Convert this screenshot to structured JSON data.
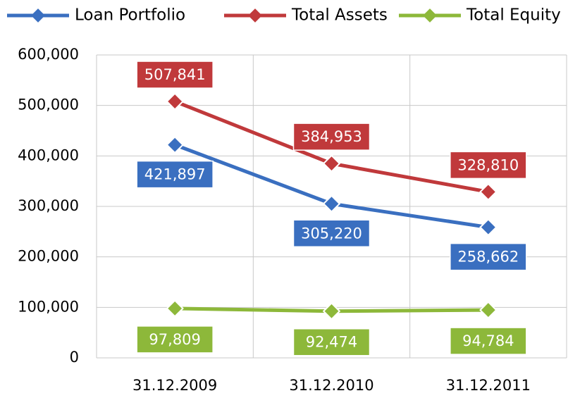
{
  "chart_data": {
    "type": "line",
    "categories": [
      "31.12.2009",
      "31.12.2010",
      "31.12.2011"
    ],
    "series": [
      {
        "name": "Loan Portfolio",
        "color": "#3a6fc0",
        "values": [
          421897,
          305220,
          258662
        ],
        "value_labels": [
          "421,897",
          "305,220",
          "258,662"
        ]
      },
      {
        "name": "Total Assets",
        "color": "#c0393b",
        "values": [
          507841,
          384953,
          328810
        ],
        "value_labels": [
          "507,841",
          "384,953",
          "328,810"
        ]
      },
      {
        "name": "Total Equity",
        "color": "#8db83a",
        "values": [
          97809,
          92474,
          94784
        ],
        "value_labels": [
          "97,809",
          "92,474",
          "94,784"
        ]
      }
    ],
    "ylim": [
      0,
      600000
    ],
    "yticks": [
      0,
      {
        "value": 100000,
        "label": "100,000"
      },
      {
        "value": 200000,
        "label": "200,000"
      },
      {
        "value": 300000,
        "label": "300,000"
      },
      {
        "value": 400000,
        "label": "400,000"
      },
      {
        "value": 500000,
        "label": "500,000"
      },
      {
        "value": 600000,
        "label": "600,000"
      }
    ],
    "grid": true,
    "legend": "top"
  }
}
